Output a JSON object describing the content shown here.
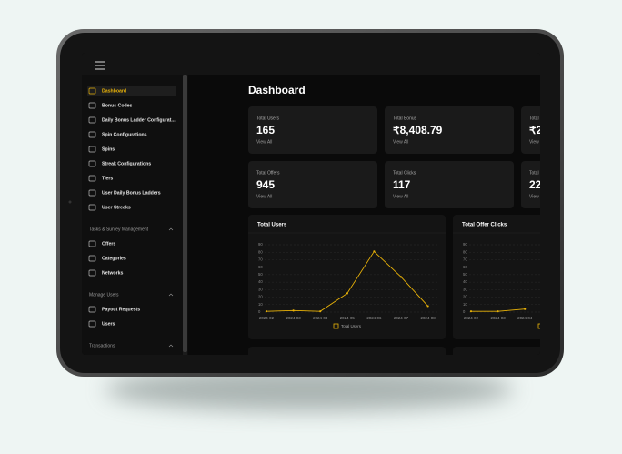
{
  "sidebar": {
    "items": [
      "Dashboard",
      "Bonus Codes",
      "Daily Bonus Ladder Configurat...",
      "Spin Configurations",
      "Spins",
      "Streak Configurations",
      "Tiers",
      "User Daily Bonus Ladders",
      "User Streaks"
    ],
    "sections": [
      {
        "title": "Tasks & Survey Management",
        "items": [
          "Offers",
          "Categories",
          "Networks"
        ]
      },
      {
        "title": "Manage Users",
        "items": [
          "Payout Requests",
          "Users"
        ]
      },
      {
        "title": "Transactions",
        "items": []
      }
    ]
  },
  "page_title": "Dashboard",
  "cards": [
    {
      "label": "Total Users",
      "value": "165",
      "link": "View All"
    },
    {
      "label": "Total Bonus",
      "value": "₹8,408.79",
      "link": "View All"
    },
    {
      "label": "Total",
      "value": "₹2",
      "link": "View"
    },
    {
      "label": "Total Offers",
      "value": "945",
      "link": "View All"
    },
    {
      "label": "Total Clicks",
      "value": "117",
      "link": "View All"
    },
    {
      "label": "Total",
      "value": "22",
      "link": "View"
    }
  ],
  "charts": [
    {
      "type": "line",
      "title": "Total Users",
      "categories": [
        "2024-02",
        "2024-03",
        "2024-04",
        "2024-05",
        "2024-06",
        "2024-07",
        "2024-08"
      ],
      "values": [
        1,
        2,
        1,
        25,
        81,
        47,
        8
      ],
      "ylim": [
        0,
        90
      ],
      "yticks": [
        0,
        10,
        20,
        30,
        40,
        50,
        60,
        70,
        80,
        90
      ],
      "legend": "Total Users",
      "color": "#eab308"
    },
    {
      "type": "line",
      "title": "Total Offer Clicks",
      "categories": [
        "2024-02",
        "2024-03",
        "2024-04"
      ],
      "values": [
        1,
        1,
        4
      ],
      "ylim": [
        0,
        90
      ],
      "yticks": [
        0,
        10,
        20,
        30,
        40,
        50,
        60,
        70,
        80,
        90
      ],
      "color": "#eab308"
    }
  ]
}
